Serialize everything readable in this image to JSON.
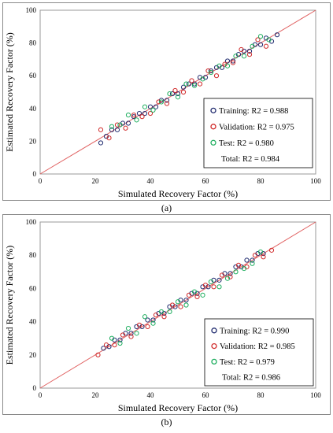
{
  "chart_data": [
    {
      "type": "scatter",
      "caption": "(a)",
      "xlabel": "Simulated Recovery Factor (%)",
      "ylabel": "Estimated Recovery Factor (%)",
      "xlim": [
        0,
        100
      ],
      "ylim": [
        0,
        100
      ],
      "xticks": [
        "0",
        "20",
        "40",
        "60",
        "80",
        "100"
      ],
      "yticks": [
        "0",
        "20",
        "40",
        "60",
        "80",
        "100"
      ],
      "grid": false,
      "legend_position": "bottom-right",
      "reference_line": {
        "x": [
          0,
          100
        ],
        "y": [
          0,
          100
        ],
        "color": "#e06060"
      },
      "series": [
        {
          "name": "Training: R2 = 0.988",
          "color": "#1f2a6e",
          "x": [
            22,
            24,
            26,
            28,
            30,
            32,
            34,
            36,
            38,
            40,
            42,
            44,
            46,
            48,
            50,
            52,
            54,
            56,
            58,
            60,
            62,
            64,
            66,
            68,
            70,
            72,
            74,
            76,
            78,
            80,
            82,
            84,
            86
          ],
          "y": [
            19,
            23,
            27,
            27,
            31,
            31,
            35,
            37,
            37,
            41,
            41,
            45,
            45,
            49,
            49,
            53,
            55,
            55,
            59,
            59,
            63,
            65,
            65,
            69,
            69,
            73,
            75,
            75,
            79,
            79,
            83,
            81,
            85
          ]
        },
        {
          "name": "Validation: R2 = 0.975",
          "color": "#d02a2a",
          "x": [
            22,
            25,
            28,
            31,
            34,
            37,
            40,
            43,
            46,
            49,
            52,
            55,
            58,
            61,
            64,
            67,
            70,
            73,
            76,
            79,
            82
          ],
          "y": [
            27,
            22,
            30,
            28,
            36,
            35,
            37,
            44,
            43,
            51,
            50,
            57,
            55,
            63,
            60,
            67,
            68,
            76,
            73,
            82,
            78
          ]
        },
        {
          "name": "Test: R2 = 0.980",
          "color": "#1fae5f",
          "x": [
            26,
            29,
            32,
            35,
            38,
            41,
            44,
            47,
            50,
            53,
            56,
            59,
            62,
            65,
            68,
            71,
            74,
            77,
            80,
            83
          ],
          "y": [
            29,
            30,
            36,
            33,
            41,
            39,
            44,
            49,
            47,
            55,
            54,
            58,
            62,
            66,
            66,
            72,
            72,
            78,
            84,
            82
          ]
        }
      ],
      "legend_extra": "Total: R2 = 0.984"
    },
    {
      "type": "scatter",
      "caption": "(b)",
      "xlabel": "Simulated Recovery Factor (%)",
      "ylabel": "Estimated Recovery Factor (%)",
      "xlim": [
        0,
        100
      ],
      "ylim": [
        0,
        100
      ],
      "xticks": [
        "0",
        "20",
        "40",
        "60",
        "80",
        "100"
      ],
      "yticks": [
        "0",
        "20",
        "40",
        "60",
        "80",
        "100"
      ],
      "grid": false,
      "legend_position": "bottom-right",
      "reference_line": {
        "x": [
          0,
          100
        ],
        "y": [
          0,
          100
        ],
        "color": "#e06060"
      },
      "series": [
        {
          "name": "Training: R2 = 0.990",
          "color": "#1f2a6e",
          "x": [
            23,
            25,
            27,
            29,
            31,
            33,
            35,
            37,
            39,
            41,
            43,
            45,
            47,
            49,
            51,
            53,
            55,
            57,
            59,
            61,
            63,
            65,
            67,
            69,
            71,
            73,
            75,
            77,
            79,
            81
          ],
          "y": [
            24,
            25,
            29,
            29,
            33,
            33,
            37,
            37,
            41,
            41,
            45,
            45,
            49,
            49,
            53,
            53,
            57,
            57,
            61,
            61,
            65,
            65,
            69,
            69,
            73,
            73,
            77,
            77,
            81,
            81
          ]
        },
        {
          "name": "Validation: R2 = 0.985",
          "color": "#d02a2a",
          "x": [
            21,
            24,
            27,
            30,
            33,
            36,
            39,
            42,
            45,
            48,
            51,
            54,
            57,
            60,
            63,
            66,
            69,
            72,
            75,
            78,
            81,
            84
          ],
          "y": [
            20,
            26,
            26,
            32,
            31,
            38,
            37,
            44,
            43,
            50,
            49,
            56,
            55,
            62,
            61,
            68,
            67,
            74,
            73,
            80,
            79,
            83
          ]
        },
        {
          "name": "Test: R2 = 0.979",
          "color": "#1fae5f",
          "x": [
            26,
            29,
            32,
            35,
            38,
            41,
            44,
            47,
            50,
            53,
            56,
            59,
            62,
            65,
            68,
            71,
            74,
            77,
            80
          ],
          "y": [
            30,
            27,
            36,
            33,
            43,
            39,
            46,
            46,
            52,
            50,
            58,
            56,
            64,
            61,
            66,
            70,
            72,
            75,
            82
          ]
        }
      ],
      "legend_extra": "Total: R2 = 0.986"
    }
  ]
}
